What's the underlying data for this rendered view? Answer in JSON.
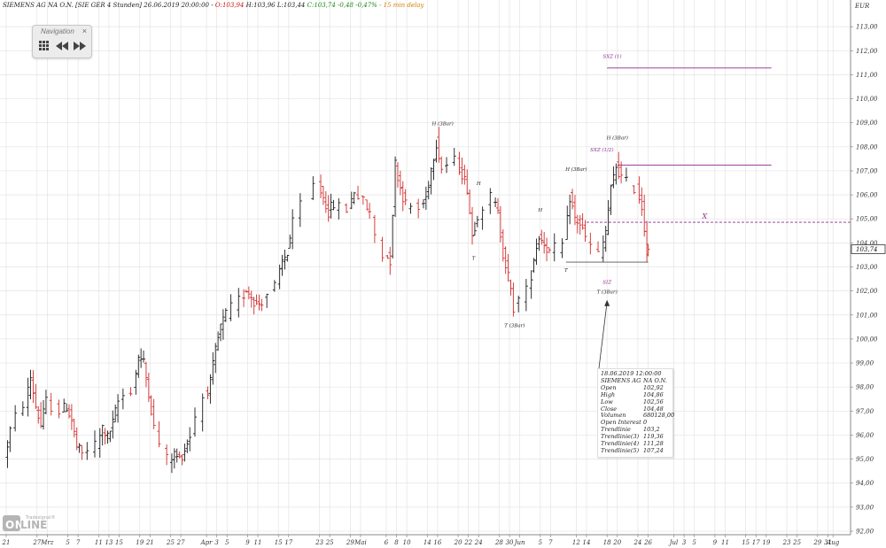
{
  "header": {
    "instrument": "SIEMENS AG NA O.N. [SIE GER 4 Stunden] 26.06.2019 20:00:00 -",
    "open": "O:103,94",
    "high": "H:103,96",
    "low": "L:103,44",
    "close": "C:103,74 -0,48 -0,47%",
    "delay": "- 15 min delay"
  },
  "navigation": {
    "title": "Navigation",
    "close": "×",
    "icons": [
      "grid-icon",
      "rewind-icon",
      "fast-forward-icon"
    ]
  },
  "tooltip": {
    "datetime": "18.06.2019 12:00:00",
    "name": "SIEMENS AG",
    "name2": "NA O.N.",
    "rows": [
      {
        "k": "Open",
        "v": "102,92"
      },
      {
        "k": "High",
        "v": "104,86"
      },
      {
        "k": "Low",
        "v": "102,56"
      },
      {
        "k": "Close",
        "v": "104,48"
      },
      {
        "k": "Volumen",
        "v": "680128,00"
      },
      {
        "k": "Open Interest",
        "v": "0"
      },
      {
        "k": "Trendlinie",
        "v": "103,2"
      },
      {
        "k": "Trendlinie(3)",
        "v": "119,36"
      },
      {
        "k": "Trendlinie(4)",
        "v": "111,28"
      },
      {
        "k": "Trendlinie(5)",
        "v": "107,24"
      }
    ]
  },
  "logo": {
    "text1": "ON",
    "text2": "LINE",
    "brand": "Tradesignal®"
  },
  "colors": {
    "up": "#1a1a1a",
    "down": "#d22b2b",
    "annotation": "#8b2a8b",
    "grid": "#e4e4e4",
    "crosshair": "#333333"
  },
  "chart_data": {
    "type": "ohlc",
    "currency": "EUR",
    "last_price_label": "103,74",
    "y_range": [
      92,
      114
    ],
    "y_ticks": [
      "113,00",
      "112,00",
      "111,00",
      "110,00",
      "109,00",
      "108,00",
      "107,00",
      "106,00",
      "105,00",
      "104,00",
      "103,00",
      "102,00",
      "101,00",
      "100,00",
      "99,00",
      "98,00",
      "97,00",
      "96,00",
      "95,00",
      "94,00",
      "93,00",
      "92,00"
    ],
    "y_tick_values": [
      113,
      112,
      111,
      110,
      109,
      108,
      107,
      106,
      105,
      104,
      103,
      102,
      101,
      100,
      99,
      98,
      97,
      96,
      95,
      94,
      93,
      92
    ],
    "x_range": [
      "2019-02-21",
      "2019-08-02"
    ],
    "x_ticks": [
      {
        "label": "21",
        "date": "2019-02-21"
      },
      {
        "label": "27",
        "date": "2019-02-27"
      },
      {
        "label": "Mrz",
        "date": "2019-03-01"
      },
      {
        "label": "5",
        "date": "2019-03-05"
      },
      {
        "label": "7",
        "date": "2019-03-07"
      },
      {
        "label": "11",
        "date": "2019-03-11"
      },
      {
        "label": "13",
        "date": "2019-03-13"
      },
      {
        "label": "15",
        "date": "2019-03-15"
      },
      {
        "label": "19",
        "date": "2019-03-19"
      },
      {
        "label": "21",
        "date": "2019-03-21"
      },
      {
        "label": "25",
        "date": "2019-03-25"
      },
      {
        "label": "27",
        "date": "2019-03-27"
      },
      {
        "label": "Apr",
        "date": "2019-04-01"
      },
      {
        "label": "3",
        "date": "2019-04-03"
      },
      {
        "label": "5",
        "date": "2019-04-05"
      },
      {
        "label": "9",
        "date": "2019-04-09"
      },
      {
        "label": "11",
        "date": "2019-04-11"
      },
      {
        "label": "15",
        "date": "2019-04-15"
      },
      {
        "label": "17",
        "date": "2019-04-17"
      },
      {
        "label": "23",
        "date": "2019-04-23"
      },
      {
        "label": "25",
        "date": "2019-04-25"
      },
      {
        "label": "29",
        "date": "2019-04-29"
      },
      {
        "label": "Mai",
        "date": "2019-05-01"
      },
      {
        "label": "6",
        "date": "2019-05-06"
      },
      {
        "label": "8",
        "date": "2019-05-08"
      },
      {
        "label": "10",
        "date": "2019-05-10"
      },
      {
        "label": "14",
        "date": "2019-05-14"
      },
      {
        "label": "16",
        "date": "2019-05-16"
      },
      {
        "label": "20",
        "date": "2019-05-20"
      },
      {
        "label": "22",
        "date": "2019-05-22"
      },
      {
        "label": "24",
        "date": "2019-05-24"
      },
      {
        "label": "28",
        "date": "2019-05-28"
      },
      {
        "label": "30",
        "date": "2019-05-30"
      },
      {
        "label": "Jun",
        "date": "2019-06-01"
      },
      {
        "label": "5",
        "date": "2019-06-05"
      },
      {
        "label": "7",
        "date": "2019-06-07"
      },
      {
        "label": "12",
        "date": "2019-06-12"
      },
      {
        "label": "14",
        "date": "2019-06-14"
      },
      {
        "label": "18",
        "date": "2019-06-18"
      },
      {
        "label": "20",
        "date": "2019-06-20"
      },
      {
        "label": "24",
        "date": "2019-06-24"
      },
      {
        "label": "26",
        "date": "2019-06-26"
      },
      {
        "label": "Jul",
        "date": "2019-07-01"
      },
      {
        "label": "3",
        "date": "2019-07-03"
      },
      {
        "label": "5",
        "date": "2019-07-05"
      },
      {
        "label": "9",
        "date": "2019-07-09"
      },
      {
        "label": "11",
        "date": "2019-07-11"
      },
      {
        "label": "15",
        "date": "2019-07-15"
      },
      {
        "label": "17",
        "date": "2019-07-17"
      },
      {
        "label": "19",
        "date": "2019-07-19"
      },
      {
        "label": "23",
        "date": "2019-07-23"
      },
      {
        "label": "25",
        "date": "2019-07-25"
      },
      {
        "label": "29",
        "date": "2019-07-29"
      },
      {
        "label": "31",
        "date": "2019-07-31"
      },
      {
        "label": "Aug",
        "date": "2019-08-01"
      }
    ],
    "price_path": [
      [
        "2019-02-21",
        95.0
      ],
      [
        "2019-02-22",
        96.2
      ],
      [
        "2019-02-25",
        97.3
      ],
      [
        "2019-02-26",
        98.4
      ],
      [
        "2019-02-27",
        97.2
      ],
      [
        "2019-02-28",
        96.4
      ],
      [
        "2019-03-01",
        97.4
      ],
      [
        "2019-03-04",
        97.0
      ],
      [
        "2019-03-05",
        97.2
      ],
      [
        "2019-03-06",
        96.6
      ],
      [
        "2019-03-07",
        95.5
      ],
      [
        "2019-03-08",
        95.2
      ],
      [
        "2019-03-11",
        95.6
      ],
      [
        "2019-03-12",
        96.3
      ],
      [
        "2019-03-13",
        95.9
      ],
      [
        "2019-03-14",
        96.5
      ],
      [
        "2019-03-15",
        97.4
      ],
      [
        "2019-03-18",
        97.9
      ],
      [
        "2019-03-19",
        99.3
      ],
      [
        "2019-03-20",
        99.0
      ],
      [
        "2019-03-21",
        97.8
      ],
      [
        "2019-03-22",
        96.3
      ],
      [
        "2019-03-25",
        95.0
      ],
      [
        "2019-03-26",
        95.2
      ],
      [
        "2019-03-27",
        95.0
      ],
      [
        "2019-03-28",
        95.4
      ],
      [
        "2019-03-29",
        96.0
      ],
      [
        "2019-04-01",
        97.6
      ],
      [
        "2019-04-02",
        98.2
      ],
      [
        "2019-04-03",
        99.5
      ],
      [
        "2019-04-04",
        100.5
      ],
      [
        "2019-04-05",
        101.0
      ],
      [
        "2019-04-08",
        101.6
      ],
      [
        "2019-04-09",
        102.1
      ],
      [
        "2019-04-10",
        101.8
      ],
      [
        "2019-04-11",
        101.4
      ],
      [
        "2019-04-12",
        101.6
      ],
      [
        "2019-04-15",
        102.2
      ],
      [
        "2019-04-16",
        103.2
      ],
      [
        "2019-04-17",
        103.6
      ],
      [
        "2019-04-18",
        104.8
      ],
      [
        "2019-04-23",
        106.4
      ],
      [
        "2019-04-24",
        105.9
      ],
      [
        "2019-04-25",
        105.3
      ],
      [
        "2019-04-26",
        105.6
      ],
      [
        "2019-04-29",
        105.4
      ],
      [
        "2019-04-30",
        106.2
      ],
      [
        "2019-05-02",
        105.7
      ],
      [
        "2019-05-03",
        105.2
      ],
      [
        "2019-05-06",
        103.5
      ],
      [
        "2019-05-07",
        103.3
      ],
      [
        "2019-05-08",
        107.3
      ],
      [
        "2019-05-09",
        106.3
      ],
      [
        "2019-05-10",
        105.6
      ],
      [
        "2019-05-13",
        105.4
      ],
      [
        "2019-05-14",
        105.9
      ],
      [
        "2019-05-15",
        107.1
      ],
      [
        "2019-05-16",
        108.2
      ],
      [
        "2019-05-17",
        107.1
      ],
      [
        "2019-05-20",
        107.4
      ],
      [
        "2019-05-21",
        106.9
      ],
      [
        "2019-05-22",
        106.3
      ],
      [
        "2019-05-23",
        104.3
      ],
      [
        "2019-05-24",
        105.2
      ],
      [
        "2019-05-27",
        105.9
      ],
      [
        "2019-05-28",
        105.2
      ],
      [
        "2019-05-29",
        103.6
      ],
      [
        "2019-05-30",
        102.6
      ],
      [
        "2019-05-31",
        101.3
      ],
      [
        "2019-06-03",
        102.0
      ],
      [
        "2019-06-04",
        103.4
      ],
      [
        "2019-06-05",
        104.3
      ],
      [
        "2019-06-06",
        104.0
      ],
      [
        "2019-06-07",
        103.6
      ],
      [
        "2019-06-10",
        103.9
      ],
      [
        "2019-06-11",
        105.9
      ],
      [
        "2019-06-12",
        105.0
      ],
      [
        "2019-06-13",
        104.8
      ],
      [
        "2019-06-14",
        104.2
      ],
      [
        "2019-06-17",
        103.5
      ],
      [
        "2019-06-18",
        104.5
      ],
      [
        "2019-06-19",
        106.2
      ],
      [
        "2019-06-20",
        107.2
      ],
      [
        "2019-06-21",
        106.7
      ],
      [
        "2019-06-24",
        106.3
      ],
      [
        "2019-06-25",
        105.5
      ],
      [
        "2019-06-26",
        103.74
      ]
    ],
    "annotations": [
      {
        "text": "H (3Bar)",
        "date": "2019-05-17",
        "price": 108.9
      },
      {
        "text": "H",
        "date": "2019-05-24",
        "price": 106.4
      },
      {
        "text": "T",
        "date": "2019-05-23",
        "price": 103.3
      },
      {
        "text": "T (3Bar)",
        "date": "2019-05-31",
        "price": 100.5
      },
      {
        "text": "H",
        "date": "2019-06-05",
        "price": 105.3
      },
      {
        "text": "T",
        "date": "2019-06-10",
        "price": 102.8
      },
      {
        "text": "H (3Bar)",
        "date": "2019-06-12",
        "price": 107.0
      },
      {
        "text": "SXZ (1/2)",
        "date": "2019-06-17",
        "price": 107.8
      },
      {
        "text": "H (3Bar)",
        "date": "2019-06-20",
        "price": 108.3
      },
      {
        "text": "SIZ",
        "date": "2019-06-18",
        "price": 102.3
      },
      {
        "text": "T (3Bar)",
        "date": "2019-06-18",
        "price": 101.9
      },
      {
        "text": "SXZ (1)",
        "date": "2019-06-19",
        "price": 111.7
      },
      {
        "text": "X",
        "date": "2019-07-07",
        "price": 105.0
      }
    ],
    "levels": [
      {
        "name": "Trendlinie(4)",
        "value": 111.28,
        "from": "2019-06-18",
        "to": "2019-07-20",
        "style": "solid"
      },
      {
        "name": "Trendlinie(5)",
        "value": 107.24,
        "from": "2019-06-20",
        "to": "2019-07-20",
        "style": "solid"
      },
      {
        "name": "X",
        "value": 104.86,
        "from": "2019-06-14",
        "to": "2019-08-05",
        "style": "dashed"
      },
      {
        "name": "Trendlinie",
        "value": 103.2,
        "from": "2019-06-10",
        "to": "2019-06-26",
        "style": "solid"
      }
    ],
    "crosshair": {
      "date": "2019-06-18",
      "label": "18.06.2019 12:00:00"
    }
  }
}
